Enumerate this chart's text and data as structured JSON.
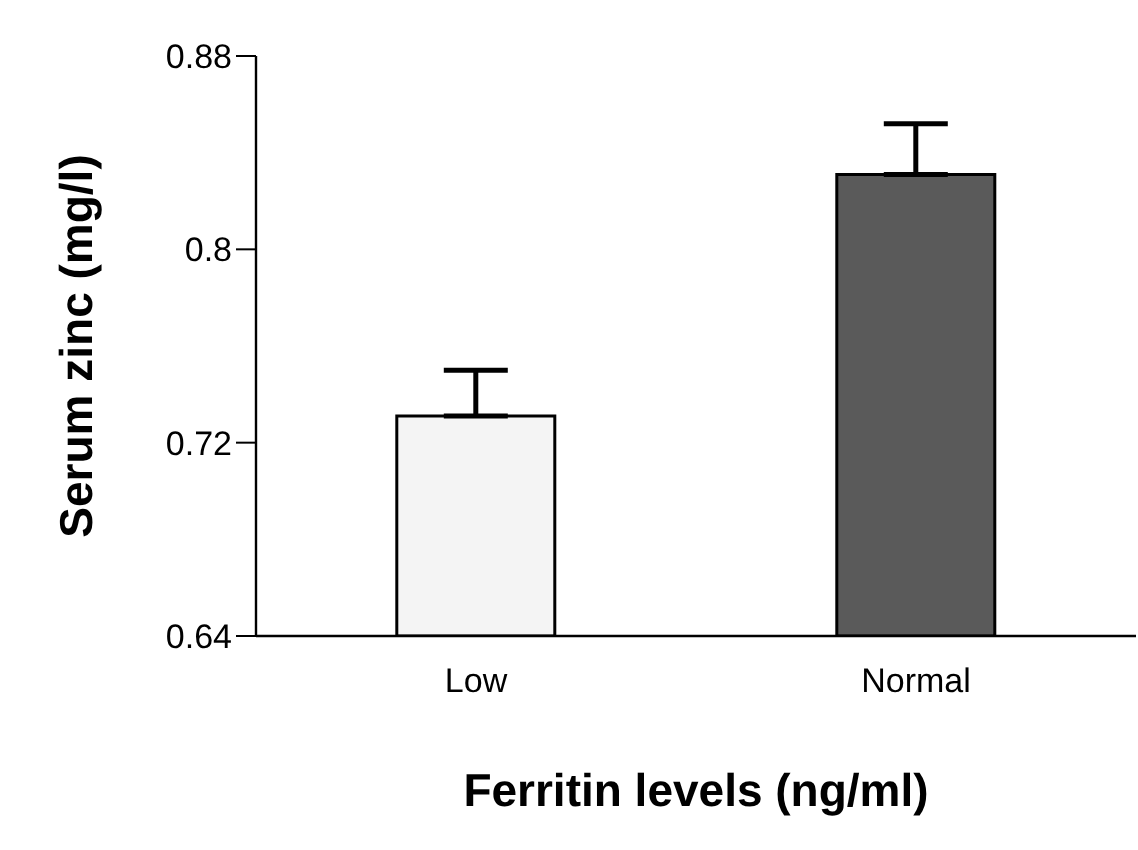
{
  "chart_data": {
    "type": "bar",
    "xlabel": "Ferritin levels (ng/ml)",
    "ylabel": "Serum zinc (mg/l)",
    "categories": [
      "Low",
      "Normal"
    ],
    "values": [
      0.731,
      0.831
    ],
    "colors": [
      "#f4f4f4",
      "#5a5a5a"
    ],
    "errors": [
      [
        0.731,
        0.75
      ],
      [
        0.831,
        0.852
      ]
    ],
    "ylim": [
      0.64,
      0.88
    ],
    "yticks": [
      0.64,
      0.72,
      0.8,
      0.88
    ],
    "grid": false,
    "legend": false
  }
}
